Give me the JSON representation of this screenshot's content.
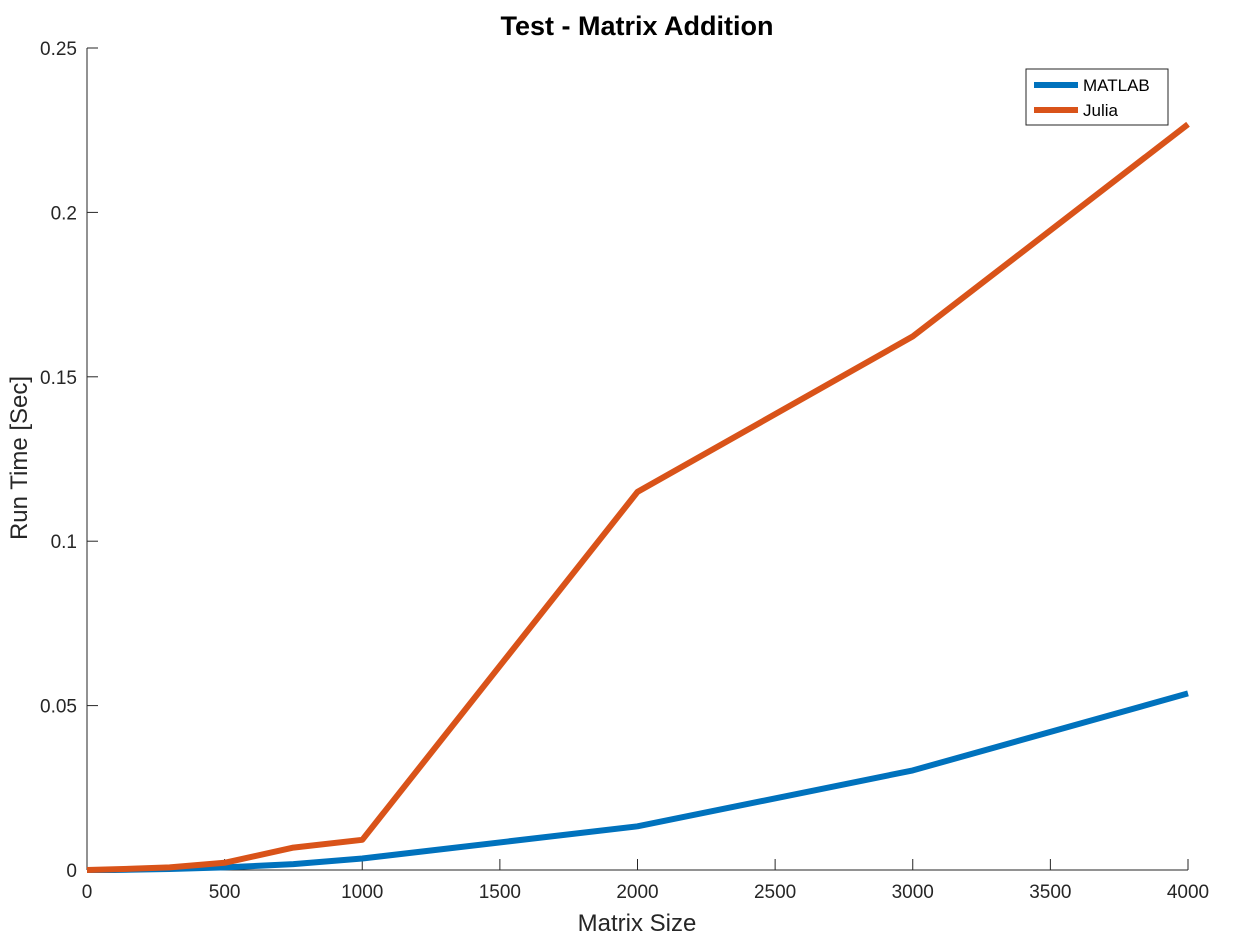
{
  "chart_data": {
    "type": "line",
    "title": "Test - Matrix Addition",
    "xlabel": "Matrix Size",
    "ylabel": "Run Time  [Sec]",
    "xlim": [
      0,
      4000
    ],
    "ylim": [
      0,
      0.25
    ],
    "xticks": [
      0,
      500,
      1000,
      1500,
      2000,
      2500,
      3000,
      3500,
      4000
    ],
    "yticks": [
      0,
      0.05,
      0.1,
      0.15,
      0.2,
      0.25
    ],
    "xtick_labels": [
      "0",
      "500",
      "1000",
      "1500",
      "2000",
      "2500",
      "3000",
      "3500",
      "4000"
    ],
    "ytick_labels": [
      "0",
      "0.05",
      "0.1",
      "0.15",
      "0.2",
      "0.25"
    ],
    "grid": false,
    "legend_position": "top-right",
    "series": [
      {
        "name": "MATLAB",
        "color": "#0072BD",
        "x": [
          0,
          100,
          300,
          500,
          750,
          1000,
          2000,
          3000,
          4000
        ],
        "y": [
          0,
          0,
          0.0003,
          0.0008,
          0.0018,
          0.0035,
          0.0133,
          0.0303,
          0.0537
        ]
      },
      {
        "name": "Julia",
        "color": "#D95319",
        "x": [
          0,
          100,
          300,
          500,
          750,
          1000,
          2000,
          3000,
          4000
        ],
        "y": [
          0,
          0.0002,
          0.0008,
          0.0022,
          0.0068,
          0.0092,
          0.115,
          0.1623,
          0.2268
        ]
      }
    ]
  }
}
